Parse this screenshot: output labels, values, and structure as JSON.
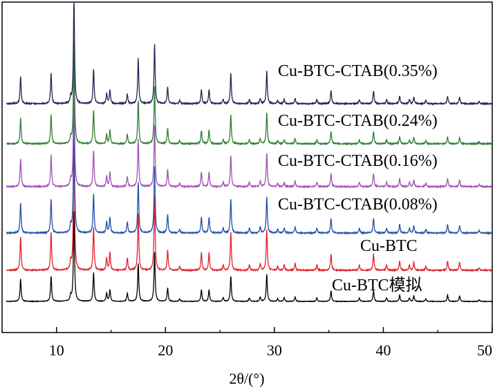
{
  "chart_data": {
    "type": "line",
    "title": "",
    "xlabel": "2θ/(°)",
    "ylabel": "",
    "xlim": [
      5,
      50
    ],
    "xticks": [
      10,
      20,
      30,
      40,
      50
    ],
    "grid": false,
    "legend": "none",
    "peaks": [
      {
        "x": 6.7,
        "h": 0.25
      },
      {
        "x": 9.5,
        "h": 0.28
      },
      {
        "x": 11.3,
        "h": 0.06
      },
      {
        "x": 11.6,
        "h": 1.0
      },
      {
        "x": 13.4,
        "h": 0.32
      },
      {
        "x": 14.6,
        "h": 0.09
      },
      {
        "x": 14.9,
        "h": 0.13
      },
      {
        "x": 16.5,
        "h": 0.09
      },
      {
        "x": 17.5,
        "h": 0.42
      },
      {
        "x": 19.0,
        "h": 0.55
      },
      {
        "x": 20.2,
        "h": 0.15
      },
      {
        "x": 21.3,
        "h": 0.03
      },
      {
        "x": 23.3,
        "h": 0.13
      },
      {
        "x": 24.0,
        "h": 0.13
      },
      {
        "x": 25.3,
        "h": 0.04
      },
      {
        "x": 26.0,
        "h": 0.28
      },
      {
        "x": 27.7,
        "h": 0.04
      },
      {
        "x": 28.7,
        "h": 0.05
      },
      {
        "x": 29.3,
        "h": 0.3
      },
      {
        "x": 30.3,
        "h": 0.03
      },
      {
        "x": 30.9,
        "h": 0.04
      },
      {
        "x": 31.9,
        "h": 0.05
      },
      {
        "x": 33.9,
        "h": 0.04
      },
      {
        "x": 35.2,
        "h": 0.12
      },
      {
        "x": 37.8,
        "h": 0.04
      },
      {
        "x": 39.1,
        "h": 0.12
      },
      {
        "x": 40.3,
        "h": 0.04
      },
      {
        "x": 41.5,
        "h": 0.07
      },
      {
        "x": 42.4,
        "h": 0.04
      },
      {
        "x": 42.8,
        "h": 0.06
      },
      {
        "x": 43.9,
        "h": 0.03
      },
      {
        "x": 45.9,
        "h": 0.07
      },
      {
        "x": 47.0,
        "h": 0.06
      },
      {
        "x": 48.8,
        "h": 0.02
      }
    ],
    "series": [
      {
        "label": "Cu-BTC模拟",
        "color": "#000000",
        "offset": 0,
        "scale": 1.0,
        "noise": 0.003
      },
      {
        "label": "Cu-BTC",
        "color": "#e0212b",
        "offset": 1,
        "scale": 1.5,
        "noise": 0.006
      },
      {
        "label": "Cu-BTC-CTAB(0.08%)",
        "color": "#2050a8",
        "offset": 2,
        "scale": 1.35,
        "noise": 0.006
      },
      {
        "label": "Cu-BTC-CTAB(0.16%)",
        "color": "#a050b4",
        "offset": 3,
        "scale": 1.25,
        "noise": 0.006
      },
      {
        "label": "Cu-BTC-CTAB(0.24%)",
        "color": "#2e7d32",
        "offset": 4,
        "scale": 1.15,
        "noise": 0.006
      },
      {
        "label": "Cu-BTC-CTAB(0.35%)",
        "color": "#1f2453",
        "offset": 5,
        "scale": 1.2,
        "noise": 0.006
      }
    ]
  }
}
